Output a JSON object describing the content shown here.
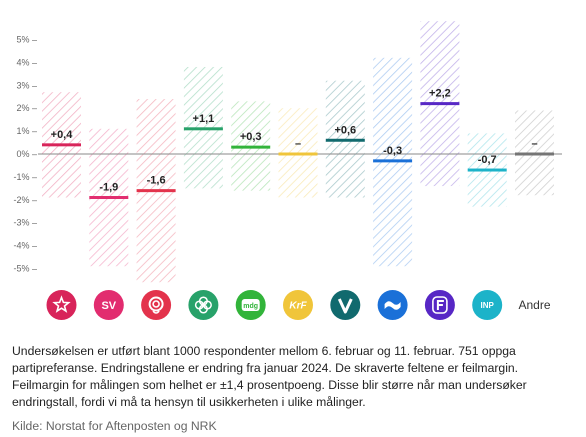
{
  "chart_data": {
    "type": "bar",
    "yaxis": {
      "ylim": [
        -5.6,
        5.8
      ],
      "ticks": [
        5,
        4,
        3,
        2,
        1,
        0,
        -1,
        -2,
        -3,
        -4,
        -5
      ],
      "tick_labels": [
        "5% –",
        "4% –",
        "3% –",
        "2% –",
        "1% –",
        "0% –",
        "-1% –",
        "-2% –",
        "-3% –",
        "-4% –",
        "-5% –"
      ]
    },
    "grid": false,
    "categories": [
      {
        "key": "rodt",
        "logo": "rodt-star-icon",
        "color": "#d8245a",
        "value": 0.4,
        "label": "+0,4",
        "margin_low": -1.9,
        "margin_high": 2.7
      },
      {
        "key": "sv",
        "logo": "sv-text-icon",
        "logo_text": "SV",
        "color": "#e22c6f",
        "value": -1.9,
        "label": "-1,9",
        "margin_low": -4.9,
        "margin_high": 1.1
      },
      {
        "key": "ap",
        "logo": "rose-icon",
        "color": "#e3334c",
        "value": -1.6,
        "label": "-1,6",
        "margin_low": -5.6,
        "margin_high": 2.4
      },
      {
        "key": "sp",
        "logo": "clover-icon",
        "color": "#28a26a",
        "value": 1.1,
        "label": "+1,1",
        "margin_low": -1.5,
        "margin_high": 3.8
      },
      {
        "key": "mdg",
        "logo": "mdg-text-icon",
        "logo_text": "mdg",
        "color": "#32b43a",
        "value": 0.3,
        "label": "+0,3",
        "margin_low": -1.6,
        "margin_high": 2.3
      },
      {
        "key": "krf",
        "logo": "krf-text-icon",
        "logo_text": "KrF",
        "color": "#f0c53a",
        "value": 0.0,
        "label": "–",
        "margin_low": -1.9,
        "margin_high": 2.0
      },
      {
        "key": "v",
        "logo": "v-letter-icon",
        "color": "#116a6e",
        "value": 0.6,
        "label": "+0,6",
        "margin_low": -1.9,
        "margin_high": 3.2
      },
      {
        "key": "h",
        "logo": "wave-icon",
        "color": "#1a70d8",
        "value": -0.3,
        "label": "-0,3",
        "margin_low": -4.9,
        "margin_high": 4.2
      },
      {
        "key": "frp",
        "logo": "frp-f-icon",
        "color": "#5727c5",
        "value": 2.2,
        "label": "+2,2",
        "margin_low": -1.4,
        "margin_high": 5.8
      },
      {
        "key": "inp",
        "logo": "inp-text-icon",
        "logo_text": "INP",
        "color": "#1cb3c9",
        "value": -0.7,
        "label": "-0,7",
        "margin_low": -2.3,
        "margin_high": 0.9
      },
      {
        "key": "andre",
        "logo": "andre-text",
        "logo_text": "Andre",
        "color": "#757575",
        "value": 0.0,
        "label": "–",
        "margin_low": -1.8,
        "margin_high": 1.9
      }
    ]
  },
  "note": "Undersøkelsen er utført blant 1000 respondenter mellom 6. februar og 11. februar. 751 oppga partipreferanse. Endringstallene er endring fra januar 2024. De skraverte feltene er feilmargin. Feilmargin for målingen som helhet er ±1,4 prosentpoeng. Disse blir større når man undersøker endringstall, fordi vi må ta hensyn til usikkerheten i ulike målinger.",
  "source": "Kilde: Norstat for Aftenposten og NRK"
}
